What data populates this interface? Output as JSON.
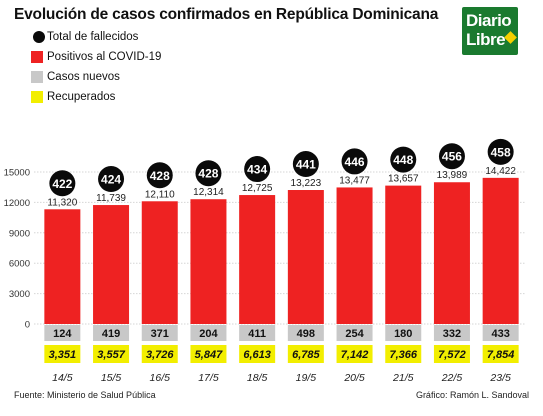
{
  "title": "Evolución de casos confirmados en República Dominicana",
  "legend": [
    {
      "label": "Total de fallecidos",
      "color": "#0a0a0a",
      "shape": "circle"
    },
    {
      "label": "Positivos al COVID-19",
      "color": "#ee2222",
      "shape": "rect"
    },
    {
      "label": "Casos nuevos",
      "color": "#c8c8c8",
      "shape": "rect"
    },
    {
      "label": "Recuperados",
      "color": "#f2ee00",
      "shape": "rect"
    }
  ],
  "logo": {
    "line1": "Diario",
    "line2": "Libre",
    "icon": "star-icon",
    "color": "#1a7a2f"
  },
  "footer": {
    "source": "Fuente: Ministerio de Salud Pública",
    "credit": "Gráfico: Ramón L. Sandoval"
  },
  "chart_data": {
    "type": "bar",
    "categories": [
      "14/5",
      "15/5",
      "16/5",
      "17/5",
      "18/5",
      "19/5",
      "20/5",
      "21/5",
      "22/5",
      "23/5"
    ],
    "values": [
      11320,
      11739,
      12110,
      12314,
      12725,
      13223,
      13477,
      13657,
      13989,
      14422
    ],
    "value_labels": [
      "11,320",
      "11,739",
      "12,110",
      "12,314",
      "12,725",
      "13,223",
      "13,477",
      "13,657",
      "13,989",
      "14,422"
    ],
    "deaths": [
      422,
      424,
      428,
      428,
      434,
      441,
      446,
      448,
      456,
      458
    ],
    "new_cases": [
      124,
      419,
      371,
      204,
      411,
      498,
      254,
      180,
      332,
      433
    ],
    "recovered": [
      3351,
      3557,
      3726,
      5847,
      6613,
      6785,
      7142,
      7366,
      7572,
      7854
    ],
    "recovered_labels": [
      "3,351",
      "3,557",
      "3,726",
      "5,847",
      "6,613",
      "6,785",
      "7,142",
      "7,366",
      "7,572",
      "7,854"
    ],
    "ylim": [
      0,
      15000
    ],
    "yticks": [
      0,
      3000,
      6000,
      9000,
      12000,
      15000
    ],
    "ytick_labels": [
      "0",
      "3000",
      "6000",
      "9000",
      "12000",
      "15000"
    ],
    "grid": true,
    "colors": {
      "bar": "#ee2222",
      "deaths": "#0a0a0a",
      "new_cases": "#c8c8c8",
      "recovered": "#f2ee00",
      "grid": "#d6d6d6"
    }
  }
}
